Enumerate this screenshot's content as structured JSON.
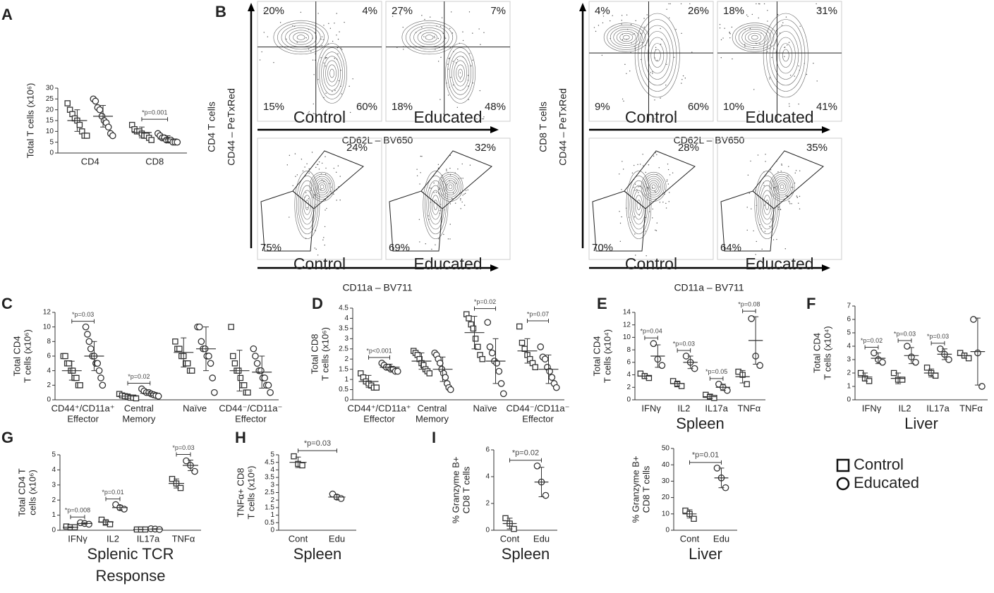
{
  "chart_data": [
    {
      "type": "dotplot",
      "label": "A",
      "ylabel": [
        "Total T cells (x10⁶)"
      ],
      "categories": [
        [
          "CD4"
        ],
        [
          "CD8"
        ]
      ],
      "ylim": [
        0,
        30
      ],
      "yticks": [
        0,
        5,
        10,
        15,
        20,
        25,
        30
      ],
      "annotations": [
        null,
        "*p=0.001"
      ],
      "series": [
        {
          "marker": "square",
          "color": "#333333",
          "values": [
            [
              23,
              20,
              18,
              16,
              15,
              13,
              10,
              8,
              8
            ],
            [
              13,
              11,
              10,
              10,
              9,
              8,
              8,
              7,
              6
            ]
          ],
          "mean": [
            15,
            9.5
          ],
          "sd": [
            5,
            2.5
          ]
        },
        {
          "marker": "circle",
          "color": "#333333",
          "values": [
            [
              25,
              24,
              21,
              20,
              17,
              15,
              14,
              12,
              9,
              8
            ],
            [
              9,
              8,
              7,
              7,
              6,
              6,
              6,
              5,
              5,
              5
            ]
          ],
          "mean": [
            17,
            6.5
          ],
          "sd": [
            5,
            1.5
          ]
        }
      ]
    },
    {
      "type": "dotplot",
      "label": "C",
      "ylabel": [
        "Total CD4",
        "T cells (x10⁶)"
      ],
      "categories": [
        [
          "CD44⁺/CD11a⁺",
          "Effector"
        ],
        [
          "Central",
          "Memory"
        ],
        [
          "Naïve"
        ],
        [
          "CD44⁻/CD11a⁻",
          "Effector"
        ]
      ],
      "ylim": [
        0,
        12
      ],
      "yticks": [
        0,
        2,
        4,
        6,
        8,
        10,
        12
      ],
      "annotations": [
        "*p=0.03",
        "*p=0.02",
        null,
        null
      ],
      "series": [
        {
          "marker": "square",
          "color": "#333333",
          "values": [
            [
              6,
              6,
              5,
              5,
              4,
              4,
              3,
              3,
              2,
              2
            ],
            [
              0.8,
              0.6,
              0.5,
              0.4,
              0.3,
              0.3,
              0.2
            ],
            [
              8,
              7,
              7,
              6,
              6,
              5,
              5,
              4,
              4
            ],
            [
              10,
              6,
              5,
              4,
              4,
              3,
              2,
              2,
              1,
              1
            ]
          ],
          "mean": [
            4,
            0.5,
            6.5,
            4
          ],
          "sd": [
            1.3,
            0.3,
            2,
            2.8
          ]
        },
        {
          "marker": "circle",
          "color": "#333333",
          "values": [
            [
              10,
              9,
              8,
              7,
              6,
              6,
              5,
              5,
              4,
              3,
              2
            ],
            [
              1.5,
              1.2,
              1,
              1,
              0.8,
              0.7,
              0.6,
              0.5
            ],
            [
              10,
              10,
              8,
              7,
              7,
              6,
              6,
              5,
              3,
              1
            ],
            [
              7,
              6,
              5,
              4,
              4,
              3,
              3,
              2,
              2,
              1
            ]
          ],
          "mean": [
            6,
            0.9,
            7,
            3.8
          ],
          "sd": [
            2,
            0.3,
            3,
            2.2
          ]
        }
      ]
    },
    {
      "type": "dotplot",
      "label": "D",
      "ylabel": [
        "Total CD8",
        "T cells (x10⁶)"
      ],
      "categories": [
        [
          "CD44⁺/CD11a⁺",
          "Effector"
        ],
        [
          "Central",
          "Memory"
        ],
        [
          "Naïve"
        ],
        [
          "CD44⁻/CD11a⁻",
          "Effector"
        ]
      ],
      "ylim": [
        0,
        4.5
      ],
      "yticks": [
        0,
        0.5,
        1,
        1.5,
        2,
        2.5,
        3,
        3.5,
        4,
        4.5
      ],
      "annotations": [
        "*p<0.001",
        null,
        "*p=0.02",
        "*p=0.07"
      ],
      "series": [
        {
          "marker": "square",
          "color": "#333333",
          "values": [
            [
              1.3,
              1.1,
              0.9,
              0.8,
              0.7,
              0.6,
              0.6
            ],
            [
              2.4,
              2.3,
              2.2,
              2,
              1.8,
              1.7,
              1.5,
              1.4,
              1.3
            ],
            [
              4.2,
              4,
              3.7,
              3.5,
              3,
              2.6,
              2.2,
              2
            ],
            [
              3.6,
              2.8,
              2.5,
              2.2,
              2,
              1.8,
              1.6
            ]
          ],
          "mean": [
            0.9,
            1.9,
            3.3,
            2.4
          ],
          "sd": [
            0.3,
            0.4,
            0.8,
            0.6
          ]
        },
        {
          "marker": "circle",
          "color": "#333333",
          "values": [
            [
              1.8,
              1.7,
              1.6,
              1.6,
              1.5,
              1.5,
              1.4,
              1.4
            ],
            [
              2.3,
              2.2,
              2,
              1.8,
              1.5,
              1.3,
              1.1,
              0.8,
              0.6,
              0.5
            ],
            [
              3.8,
              2.6,
              2.3,
              1.9,
              1.8,
              1.4,
              0.8,
              0.3
            ],
            [
              2.6,
              2.1,
              2,
              1.6,
              1.4,
              1.1,
              0.8,
              0.6
            ]
          ],
          "mean": [
            1.6,
            1.5,
            1.9,
            1.5
          ],
          "sd": [
            0.15,
            0.6,
            1.1,
            0.7
          ]
        }
      ]
    },
    {
      "type": "dotplot",
      "label": "E",
      "ylabel": [
        "Total CD4",
        "T cells (x10⁴)"
      ],
      "xlabel": [
        "Spleen"
      ],
      "categories": [
        [
          "IFNγ"
        ],
        [
          "IL2"
        ],
        [
          "IL17a"
        ],
        [
          "TNFα"
        ]
      ],
      "ylim": [
        0,
        14
      ],
      "yticks": [
        0,
        2,
        4,
        6,
        8,
        10,
        12,
        14
      ],
      "annotations": [
        "*p=0.04",
        "*p=0.03",
        "*p=0.05",
        "*p=0.08"
      ],
      "series": [
        {
          "marker": "square",
          "color": "#333333",
          "values": [
            [
              4.2,
              3.8,
              3.5
            ],
            [
              3,
              2.5,
              2.2
            ],
            [
              0.8,
              0.5,
              0.3
            ],
            [
              4.5,
              4,
              2.5
            ]
          ],
          "mean": [
            3.8,
            2.6,
            0.5,
            3.7
          ],
          "sd": [
            0.4,
            0.4,
            0.3,
            1
          ]
        },
        {
          "marker": "circle",
          "color": "#333333",
          "values": [
            [
              9,
              6.5,
              5.5
            ],
            [
              7,
              6,
              5
            ],
            [
              2.5,
              2,
              1.5
            ],
            [
              13,
              7,
              5.5
            ]
          ],
          "mean": [
            7,
            6,
            2,
            9.5
          ],
          "sd": [
            1.8,
            1,
            0.5,
            3.8
          ]
        }
      ]
    },
    {
      "type": "dotplot",
      "label": "F",
      "ylabel": [
        "Total CD4",
        "T cells (x10⁴)"
      ],
      "xlabel": [
        "Liver"
      ],
      "categories": [
        [
          "IFNγ"
        ],
        [
          "IL2"
        ],
        [
          "IL17a"
        ],
        [
          "TNFα"
        ]
      ],
      "ylim": [
        0,
        7
      ],
      "yticks": [
        0,
        1,
        2,
        3,
        4,
        5,
        6,
        7
      ],
      "annotations": [
        "*p=0.02",
        "*p=0.03",
        "*p=0.03",
        null
      ],
      "series": [
        {
          "marker": "square",
          "color": "#333333",
          "values": [
            [
              2,
              1.6,
              1.4
            ],
            [
              2,
              1.5,
              1.5
            ],
            [
              2.4,
              2,
              1.8
            ],
            [
              3.5,
              3.3,
              3.1
            ]
          ],
          "mean": [
            1.7,
            1.6,
            2,
            3.3
          ],
          "sd": [
            0.3,
            0.4,
            0.3,
            0.2
          ]
        },
        {
          "marker": "circle",
          "color": "#333333",
          "values": [
            [
              3.5,
              3,
              2.8
            ],
            [
              4,
              3.2,
              2.8
            ],
            [
              3.8,
              3.4,
              3
            ],
            [
              6,
              3.5,
              1
            ]
          ],
          "mean": [
            3.1,
            3.3,
            3.4,
            3.6
          ],
          "sd": [
            0.4,
            0.6,
            0.4,
            2.5
          ]
        }
      ]
    },
    {
      "type": "dotplot",
      "label": "G",
      "ylabel": [
        "Total CD4 T",
        "cells (x10⁶)"
      ],
      "xlabel": [
        "Splenic TCR",
        "Response"
      ],
      "categories": [
        [
          "IFNγ"
        ],
        [
          "IL2"
        ],
        [
          "IL17a"
        ],
        [
          "TNFα"
        ]
      ],
      "ylim": [
        0,
        5
      ],
      "yticks": [
        0,
        1,
        2,
        3,
        4,
        5
      ],
      "annotations": [
        "*p=0.008",
        "*p=0.01",
        null,
        "*p=0.03"
      ],
      "series": [
        {
          "marker": "square",
          "color": "#333333",
          "values": [
            [
              0.25,
              0.2,
              0.2
            ],
            [
              0.7,
              0.5,
              0.4
            ],
            [
              0.05,
              0.05,
              0.05
            ],
            [
              3.4,
              3.1,
              2.8
            ]
          ],
          "mean": [
            0.2,
            0.55,
            0.05,
            3.1
          ],
          "sd": [
            0.03,
            0.15,
            0.01,
            0.3
          ]
        },
        {
          "marker": "circle",
          "color": "#333333",
          "values": [
            [
              0.5,
              0.45,
              0.4
            ],
            [
              1.7,
              1.5,
              1.4
            ],
            [
              0.1,
              0.08,
              0.05
            ],
            [
              4.6,
              4.3,
              3.9
            ]
          ],
          "mean": [
            0.45,
            1.5,
            0.08,
            4.3
          ],
          "sd": [
            0.05,
            0.15,
            0.02,
            0.35
          ]
        }
      ]
    },
    {
      "type": "dotplot",
      "label": "H",
      "ylabel": [
        "TNFα+ CD8",
        "T cells (x10⁶)"
      ],
      "xlabel": [
        "Spleen"
      ],
      "categories": [
        [
          "Cont"
        ],
        [
          "Edu"
        ]
      ],
      "ylim": [
        0,
        5
      ],
      "yticks": [
        0,
        0.5,
        1,
        1.5,
        2,
        2.5,
        3,
        3.5,
        4,
        4.5,
        5
      ],
      "annotation": "*p=0.03",
      "series": [
        {
          "marker": "square",
          "color": "#333333",
          "values": [
            [
              4.9,
              4.4,
              4.3
            ],
            null
          ],
          "mean": [
            4.5,
            null
          ],
          "sd": [
            0.35,
            null
          ]
        },
        {
          "marker": "circle",
          "color": "#333333",
          "values": [
            null,
            [
              2.4,
              2.2,
              2.1
            ]
          ],
          "mean": [
            null,
            2.2
          ],
          "sd": [
            null,
            0.15
          ]
        }
      ]
    },
    {
      "type": "dotplot",
      "label": "I",
      "ylabel": [
        "% Granzyme B+",
        "CD8 T cells"
      ],
      "xlabel": [
        "Spleen"
      ],
      "categories": [
        [
          "Cont"
        ],
        [
          "Edu"
        ]
      ],
      "ylim": [
        0,
        6
      ],
      "yticks": [
        0,
        2,
        4,
        6
      ],
      "annotation": "*p=0.02",
      "series": [
        {
          "marker": "square",
          "color": "#333333",
          "values": [
            [
              0.9,
              0.5,
              0.1
            ],
            null
          ],
          "mean": [
            0.5,
            null
          ],
          "sd": [
            0.4,
            null
          ]
        },
        {
          "marker": "circle",
          "color": "#333333",
          "values": [
            null,
            [
              4.8,
              3.6,
              2.6
            ]
          ],
          "mean": [
            null,
            3.6
          ],
          "sd": [
            null,
            1.1
          ]
        }
      ]
    },
    {
      "type": "dotplot",
      "ylabel": [
        "% Granzyme B+",
        "CD8 T cells"
      ],
      "xlabel": [
        "Liver"
      ],
      "categories": [
        [
          "Cont"
        ],
        [
          "Edu"
        ]
      ],
      "ylim": [
        0,
        50
      ],
      "yticks": [
        0,
        10,
        20,
        30,
        40,
        50
      ],
      "annotation": "*p=0.01",
      "series": [
        {
          "marker": "square",
          "color": "#333333",
          "values": [
            [
              12,
              10,
              7
            ],
            null
          ],
          "mean": [
            10,
            null
          ],
          "sd": [
            2.5,
            null
          ]
        },
        {
          "marker": "circle",
          "color": "#333333",
          "values": [
            null,
            [
              38,
              32,
              26
            ]
          ],
          "mean": [
            null,
            32
          ],
          "sd": [
            null,
            6
          ]
        }
      ]
    }
  ],
  "flow": {
    "label": "B",
    "groups": [
      {
        "row_label": "CD4 T cells",
        "y_axis": "CD44 – PeTxRed",
        "x_axis_top": "CD62L – BV650",
        "x_axis_bottom": "CD11a – BV711",
        "top": [
          {
            "name": "Control",
            "quadrants": [
              "20%",
              "4%",
              "15%",
              "60%"
            ]
          },
          {
            "name": "Educated",
            "quadrants": [
              "27%",
              "7%",
              "18%",
              "48%"
            ]
          }
        ],
        "bottom": [
          {
            "name": "Control",
            "gates": [
              "24%",
              "75%"
            ]
          },
          {
            "name": "Educated",
            "gates": [
              "32%",
              "69%"
            ]
          }
        ]
      },
      {
        "row_label": "CD8 T cells",
        "y_axis": "CD44 – PeTxRed",
        "x_axis_top": "CD62L – BV650",
        "x_axis_bottom": "CD11a – BV711",
        "top": [
          {
            "name": "Control",
            "quadrants": [
              "4%",
              "26%",
              "9%",
              "60%"
            ]
          },
          {
            "name": "Educated",
            "quadrants": [
              "18%",
              "31%",
              "10%",
              "41%"
            ]
          }
        ],
        "bottom": [
          {
            "name": "Control",
            "gates": [
              "28%",
              "70%"
            ]
          },
          {
            "name": "Educated",
            "gates": [
              "35%",
              "64%"
            ]
          }
        ]
      }
    ]
  },
  "legend": [
    {
      "name": "Control",
      "marker": "square"
    },
    {
      "name": "Educated",
      "marker": "circle"
    }
  ]
}
